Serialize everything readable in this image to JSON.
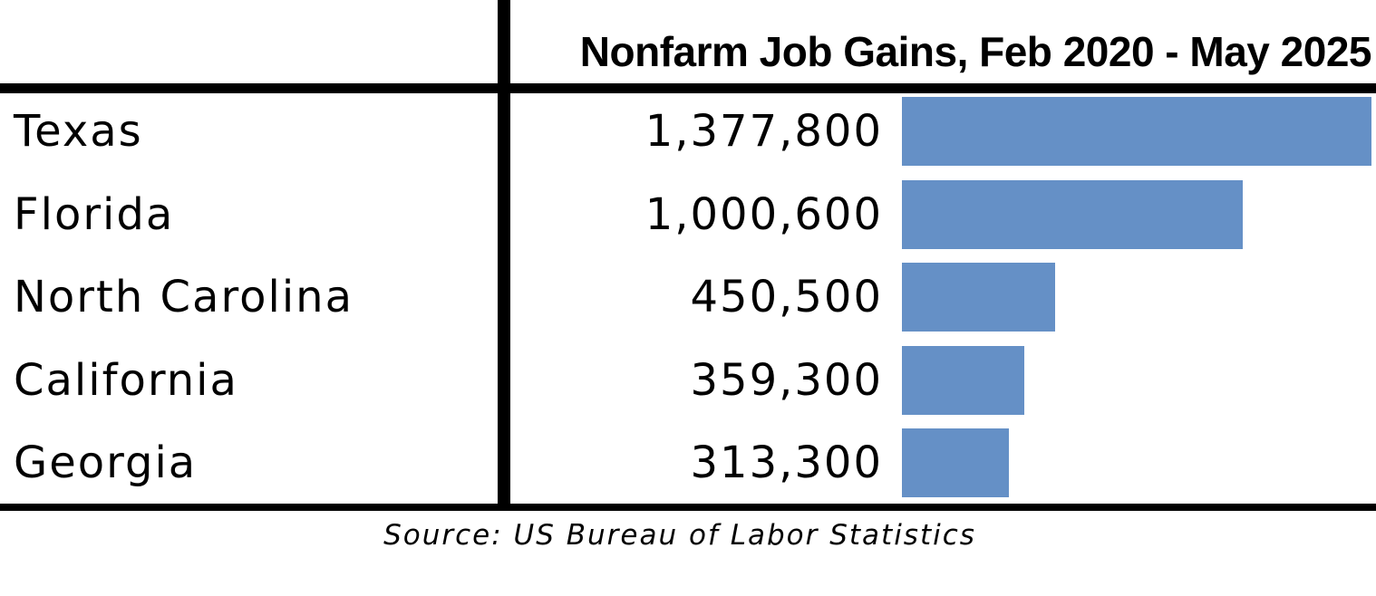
{
  "colors": {
    "bar": "#6590C6",
    "rule": "#000000",
    "text": "#000000",
    "background": "#FFFFFF"
  },
  "chart_data": {
    "type": "bar",
    "orientation": "horizontal",
    "title": "Nonfarm Job Gains, Feb 2020 - May 2025",
    "categories": [
      "Texas",
      "Florida",
      "North Carolina",
      "California",
      "Georgia"
    ],
    "values": [
      1377800,
      1000600,
      450500,
      359300,
      313300
    ],
    "value_labels": [
      "1,377,800",
      "1,000,600",
      "450,500",
      "359,300",
      "313,300"
    ],
    "xlim": [
      0,
      1377800
    ],
    "grid": false,
    "legend": "none"
  },
  "source": "Source:  US Bureau of Labor Statistics"
}
